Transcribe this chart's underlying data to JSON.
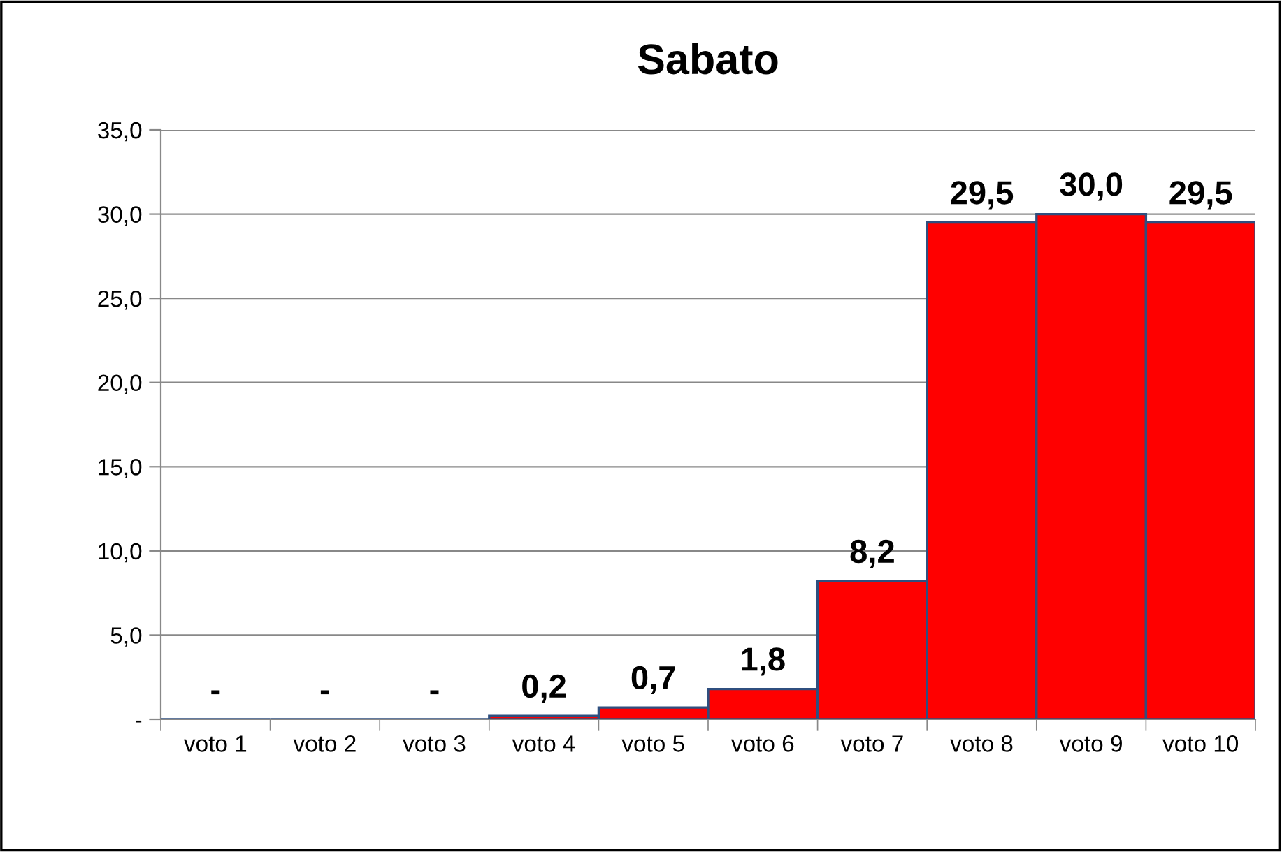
{
  "chart_data": {
    "type": "bar",
    "title": "Sabato",
    "categories": [
      "voto 1",
      "voto 2",
      "voto 3",
      "voto 4",
      "voto 5",
      "voto 6",
      "voto 7",
      "voto 8",
      "voto 9",
      "voto 10"
    ],
    "values": [
      0,
      0,
      0,
      0.2,
      0.7,
      1.8,
      8.2,
      29.5,
      30.0,
      29.5
    ],
    "value_labels": [
      "-",
      "-",
      "-",
      "0,2",
      "0,7",
      "1,8",
      "8,2",
      "29,5",
      "30,0",
      "29,5"
    ],
    "color": "#ff0000",
    "ylim": [
      0,
      35
    ],
    "yticks": [
      {
        "value": 0,
        "label": "-"
      },
      {
        "value": 5,
        "label": "5,0"
      },
      {
        "value": 10,
        "label": "10,0"
      },
      {
        "value": 15,
        "label": "15,0"
      },
      {
        "value": 20,
        "label": "20,0"
      },
      {
        "value": 25,
        "label": "25,0"
      },
      {
        "value": 30,
        "label": "30,0"
      },
      {
        "value": 35,
        "label": "35,0"
      }
    ],
    "grid": "y",
    "legend": false
  }
}
